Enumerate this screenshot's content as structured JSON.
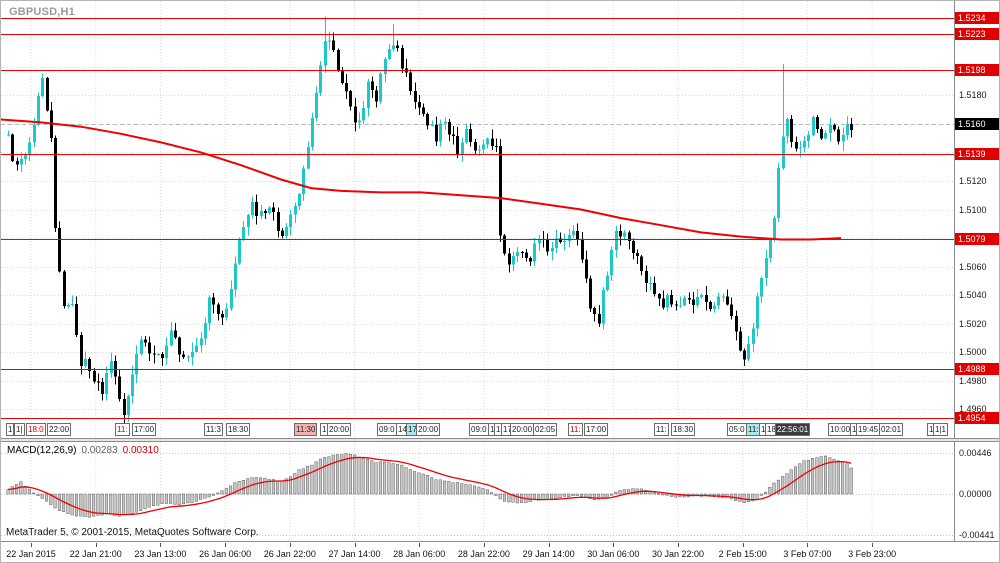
{
  "app": {
    "symbol_period": "GBPUSD,H1",
    "attribution": "MetaTrader 5, © 2001-2015, MetaQuotes Software Corp."
  },
  "colors": {
    "bull_candle": "#1ec8c8",
    "bear_candle": "#000000",
    "ma_line": "#f00000",
    "level_line": "#f00000",
    "level_label_bg": "#e00000",
    "current_label_bg": "#000000",
    "macd_histogram_fill": "#c8c8c8",
    "macd_histogram_stroke": "#404040",
    "macd_signal": "#f00000",
    "grid": "#dcdcdc"
  },
  "price_axis": {
    "current_price": "1.5160",
    "level_labels": [
      "1.5234",
      "1.5223",
      "1.5198",
      "1.5139",
      "1.5079",
      "1.4988",
      "1.4954"
    ],
    "normal_labels": [
      "1.5180",
      "1.5120",
      "1.5100",
      "1.5060",
      "1.5040",
      "1.5020",
      "1.5000",
      "1.4980",
      "1.4960"
    ]
  },
  "indicator": {
    "name": "MACD(12,26,9)",
    "main_value": "0.00283",
    "signal_value": "0.00310"
  },
  "macd_axis": {
    "ticks": [
      "0.00446",
      "0.00000",
      "-0.00441"
    ]
  },
  "time_axis": {
    "labels": [
      "22 Jan 2015",
      "22 Jan 21:00",
      "23 Jan 13:00",
      "26 Jan 06:00",
      "26 Jan 22:00",
      "27 Jan 14:00",
      "28 Jan 06:00",
      "28 Jan 22:00",
      "29 Jan 14:00",
      "30 Jan 06:00",
      "30 Jan 22:00",
      "2 Feb 15:00",
      "3 Feb 07:00",
      "3 Feb 23:00"
    ]
  },
  "event_markers": [
    {
      "l": 5,
      "t": "1"
    },
    {
      "l": 13,
      "t": "1|"
    },
    {
      "l": 25,
      "t": "18:0",
      "c": "#cc0000"
    },
    {
      "l": 46,
      "t": "22:00"
    },
    {
      "l": 114,
      "t": "11:",
      "c": "#cc0000"
    },
    {
      "l": 131,
      "t": "17:00"
    },
    {
      "l": 203,
      "t": "11:3"
    },
    {
      "l": 225,
      "t": "18:30"
    },
    {
      "l": 293,
      "t": "11:30",
      "bg": "#f2b0b0"
    },
    {
      "l": 319,
      "t": "1"
    },
    {
      "l": 326,
      "t": "20:00"
    },
    {
      "l": 376,
      "t": "09:0"
    },
    {
      "l": 395,
      "t": "14"
    },
    {
      "l": 405,
      "t": "17",
      "bg": "#a8e8e8"
    },
    {
      "l": 415,
      "t": "20:00"
    },
    {
      "l": 468,
      "t": "09:0"
    },
    {
      "l": 487,
      "t": "1"
    },
    {
      "l": 493,
      "t": "1|"
    },
    {
      "l": 500,
      "t": "17"
    },
    {
      "l": 509,
      "t": "20:00"
    },
    {
      "l": 532,
      "t": "02:05"
    },
    {
      "l": 567,
      "t": "11:",
      "c": "#cc0000"
    },
    {
      "l": 583,
      "t": "17:00"
    },
    {
      "l": 653,
      "t": "11:"
    },
    {
      "l": 670,
      "t": "18:30"
    },
    {
      "l": 726,
      "t": "05:0"
    },
    {
      "l": 745,
      "t": "11:",
      "bg": "#a8e8e8"
    },
    {
      "l": 758,
      "t": "1"
    },
    {
      "l": 764,
      "t": "18"
    },
    {
      "l": 774,
      "t": "22:56:01",
      "bg": "#3c3c3c",
      "c": "#ffffff"
    },
    {
      "l": 827,
      "t": "10:00"
    },
    {
      "l": 849,
      "t": "1"
    },
    {
      "l": 855,
      "t": "19:45"
    },
    {
      "l": 878,
      "t": "02:01"
    },
    {
      "l": 926,
      "t": "1"
    },
    {
      "l": 932,
      "t": "1|1"
    }
  ],
  "chart_data": [
    {
      "type": "candlestick",
      "symbol": "GBPUSD",
      "timeframe": "H1",
      "y_range": [
        1.494,
        1.5246
      ],
      "candle_count": 198,
      "current_price": 1.516,
      "levels": [
        1.5234,
        1.5223,
        1.5198,
        1.5139,
        1.5079,
        1.4988,
        1.4954
      ],
      "grid_levels": [
        1.496,
        1.498,
        1.5,
        1.502,
        1.504,
        1.506,
        1.508,
        1.51,
        1.512,
        1.514,
        1.516,
        1.518,
        1.52,
        1.522
      ],
      "close_waypoints": [
        [
          0,
          1.5152
        ],
        [
          1,
          1.5138
        ],
        [
          3,
          1.5132
        ],
        [
          5,
          1.5148
        ],
        [
          7,
          1.5178
        ],
        [
          8,
          1.519
        ],
        [
          10,
          1.5152
        ],
        [
          11,
          1.5085
        ],
        [
          13,
          1.5032
        ],
        [
          15,
          1.5036
        ],
        [
          17,
          1.4994
        ],
        [
          19,
          1.4988
        ],
        [
          22,
          1.4972
        ],
        [
          24,
          1.4992
        ],
        [
          27,
          1.4958
        ],
        [
          29,
          1.4988
        ],
        [
          31,
          1.5012
        ],
        [
          33,
          1.5002
        ],
        [
          36,
          1.4996
        ],
        [
          38,
          1.5012
        ],
        [
          40,
          1.5002
        ],
        [
          43,
          1.4996
        ],
        [
          45,
          1.5012
        ],
        [
          47,
          1.5036
        ],
        [
          50,
          1.5022
        ],
        [
          52,
          1.5042
        ],
        [
          54,
          1.5078
        ],
        [
          57,
          1.5102
        ],
        [
          59,
          1.5095
        ],
        [
          61,
          1.51
        ],
        [
          64,
          1.5082
        ],
        [
          66,
          1.5092
        ],
        [
          68,
          1.5108
        ],
        [
          70,
          1.5148
        ],
        [
          72,
          1.5185
        ],
        [
          74,
          1.5222
        ],
        [
          76,
          1.5208
        ],
        [
          78,
          1.519
        ],
        [
          80,
          1.5168
        ],
        [
          82,
          1.5162
        ],
        [
          84,
          1.5188
        ],
        [
          86,
          1.5178
        ],
        [
          88,
          1.5205
        ],
        [
          90,
          1.5218
        ],
        [
          92,
          1.52
        ],
        [
          94,
          1.5186
        ],
        [
          96,
          1.5172
        ],
        [
          98,
          1.5162
        ],
        [
          100,
          1.5152
        ],
        [
          102,
          1.5162
        ],
        [
          105,
          1.5142
        ],
        [
          107,
          1.5152
        ],
        [
          109,
          1.5142
        ],
        [
          112,
          1.515
        ],
        [
          114,
          1.5142
        ],
        [
          115,
          1.5085
        ],
        [
          117,
          1.5062
        ],
        [
          119,
          1.5072
        ],
        [
          121,
          1.5062
        ],
        [
          124,
          1.508
        ],
        [
          126,
          1.5074
        ],
        [
          128,
          1.508
        ],
        [
          130,
          1.5074
        ],
        [
          132,
          1.5088
        ],
        [
          134,
          1.5068
        ],
        [
          136,
          1.5032
        ],
        [
          138,
          1.5022
        ],
        [
          140,
          1.5058
        ],
        [
          142,
          1.5088
        ],
        [
          144,
          1.5082
        ],
        [
          146,
          1.5068
        ],
        [
          148,
          1.5058
        ],
        [
          151,
          1.504
        ],
        [
          153,
          1.503
        ],
        [
          154,
          1.5042
        ],
        [
          156,
          1.503
        ],
        [
          158,
          1.5042
        ],
        [
          160,
          1.5034
        ],
        [
          162,
          1.5042
        ],
        [
          165,
          1.503
        ],
        [
          167,
          1.5042
        ],
        [
          168,
          1.503
        ],
        [
          170,
          1.5012
        ],
        [
          172,
          1.4996
        ],
        [
          174,
          1.5014
        ],
        [
          175,
          1.5042
        ],
        [
          177,
          1.5062
        ],
        [
          179,
          1.5092
        ],
        [
          180,
          1.5132
        ],
        [
          182,
          1.5162
        ],
        [
          183,
          1.515
        ],
        [
          185,
          1.5142
        ],
        [
          187,
          1.5152
        ],
        [
          188,
          1.5162
        ],
        [
          190,
          1.515
        ],
        [
          192,
          1.5156
        ],
        [
          194,
          1.515
        ],
        [
          196,
          1.5162
        ],
        [
          197,
          1.516
        ]
      ],
      "spikes": [
        {
          "i": 11,
          "high": 1.515
        },
        {
          "i": 27,
          "low": 1.495
        },
        {
          "i": 74,
          "high": 1.5235
        },
        {
          "i": 90,
          "high": 1.523
        },
        {
          "i": 181,
          "high": 1.5202
        }
      ],
      "ma_waypoints": [
        [
          0,
          1.5163
        ],
        [
          40,
          1.5161
        ],
        [
          80,
          1.5158
        ],
        [
          120,
          1.5153
        ],
        [
          160,
          1.5147
        ],
        [
          200,
          1.514
        ],
        [
          240,
          1.5131
        ],
        [
          280,
          1.5121
        ],
        [
          310,
          1.5115
        ],
        [
          340,
          1.5113
        ],
        [
          380,
          1.5112
        ],
        [
          420,
          1.5112
        ],
        [
          460,
          1.511
        ],
        [
          500,
          1.5108
        ],
        [
          540,
          1.5104
        ],
        [
          580,
          1.51
        ],
        [
          620,
          1.5094
        ],
        [
          660,
          1.5089
        ],
        [
          700,
          1.5084
        ],
        [
          740,
          1.5081
        ],
        [
          780,
          1.5079
        ],
        [
          810,
          1.5079
        ],
        [
          840,
          1.508
        ]
      ]
    },
    {
      "type": "bar",
      "name": "MACD(12,26,9)",
      "main_value": 0.00283,
      "signal_value": 0.0031,
      "y_ticks": [
        0.00446,
        0,
        -0.00441
      ],
      "macd_waypoints": [
        [
          0,
          0.0005
        ],
        [
          3,
          0.0013
        ],
        [
          5,
          0.0005
        ],
        [
          9,
          -0.0008
        ],
        [
          12,
          -0.0018
        ],
        [
          16,
          -0.0024
        ],
        [
          19,
          -0.0025
        ],
        [
          23,
          -0.0022
        ],
        [
          26,
          -0.0024
        ],
        [
          30,
          -0.002
        ],
        [
          33,
          -0.0014
        ],
        [
          37,
          -0.001
        ],
        [
          40,
          -0.0012
        ],
        [
          44,
          -0.0008
        ],
        [
          47,
          -0.0003
        ],
        [
          50,
          0.0003
        ],
        [
          53,
          0.0012
        ],
        [
          57,
          0.0018
        ],
        [
          60,
          0.0017
        ],
        [
          64,
          0.0014
        ],
        [
          66,
          0.0019
        ],
        [
          68,
          0.0026
        ],
        [
          71,
          0.0032
        ],
        [
          73,
          0.0038
        ],
        [
          75,
          0.0041
        ],
        [
          79,
          0.0044
        ],
        [
          81,
          0.0042
        ],
        [
          84,
          0.0038
        ],
        [
          86,
          0.0034
        ],
        [
          88,
          0.0035
        ],
        [
          91,
          0.0033
        ],
        [
          93,
          0.0029
        ],
        [
          95,
          0.0024
        ],
        [
          98,
          0.002
        ],
        [
          100,
          0.0016
        ],
        [
          102,
          0.0014
        ],
        [
          105,
          0.0012
        ],
        [
          107,
          0.0011
        ],
        [
          109,
          0.0009
        ],
        [
          112,
          0.0005
        ],
        [
          114,
          -0.0002
        ],
        [
          116,
          -0.0008
        ],
        [
          119,
          -0.001
        ],
        [
          121,
          -0.0009
        ],
        [
          123,
          -0.0007
        ],
        [
          126,
          -0.0006
        ],
        [
          128,
          -0.0005
        ],
        [
          130,
          -0.0003
        ],
        [
          133,
          -0.0002
        ],
        [
          135,
          -0.0004
        ],
        [
          137,
          -0.0006
        ],
        [
          140,
          -0.0004
        ],
        [
          142,
          0.0002
        ],
        [
          144,
          0.0005
        ],
        [
          147,
          0.0006
        ],
        [
          149,
          0.0004
        ],
        [
          151,
          0.0001
        ],
        [
          154,
          -0.0002
        ],
        [
          156,
          -0.0003
        ],
        [
          158,
          -0.0003
        ],
        [
          161,
          -0.0002
        ],
        [
          163,
          -0.0002
        ],
        [
          165,
          -0.0003
        ],
        [
          168,
          -0.0004
        ],
        [
          170,
          -0.0007
        ],
        [
          172,
          -0.0009
        ],
        [
          175,
          -0.0006
        ],
        [
          177,
          0.0002
        ],
        [
          179,
          0.0012
        ],
        [
          182,
          0.0022
        ],
        [
          184,
          0.003
        ],
        [
          186,
          0.0036
        ],
        [
          189,
          0.004
        ],
        [
          191,
          0.0041
        ],
        [
          193,
          0.0038
        ],
        [
          196,
          0.0033
        ],
        [
          197,
          0.0028
        ]
      ]
    }
  ]
}
